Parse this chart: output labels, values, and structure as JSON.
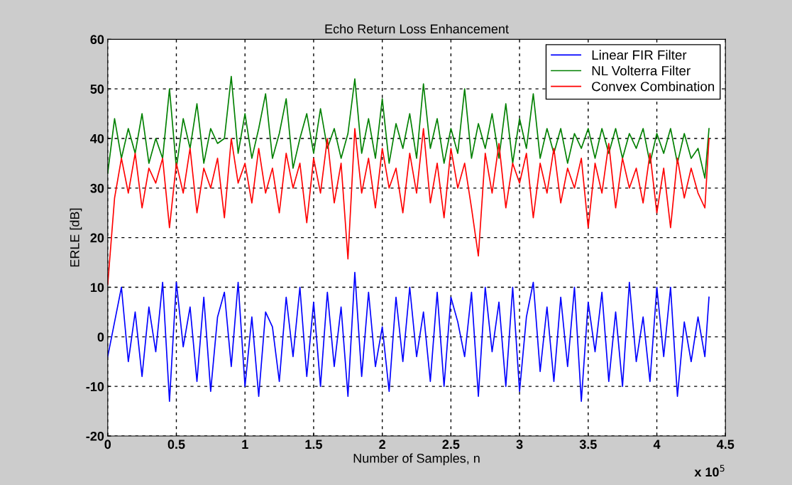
{
  "chart_data": {
    "type": "line",
    "title": "Echo Return Loss Enhancement",
    "xlabel": "Number of Samples, n",
    "ylabel": "ERLE [dB]",
    "annotations": [
      "x 10$^{5}$"
    ],
    "x": [
      0,
      0.05,
      0.1,
      0.15,
      0.2,
      0.25,
      0.3,
      0.35,
      0.4,
      0.45,
      0.5,
      0.55,
      0.6,
      0.65,
      0.7,
      0.75,
      0.8,
      0.85,
      0.9,
      0.95,
      1,
      1.05,
      1.1,
      1.15,
      1.2,
      1.25,
      1.3,
      1.35,
      1.4,
      1.45,
      1.5,
      1.55,
      1.6,
      1.65,
      1.7,
      1.75,
      1.8,
      1.85,
      1.9,
      1.95,
      2,
      2.05,
      2.1,
      2.15,
      2.2,
      2.25,
      2.3,
      2.35,
      2.4,
      2.45,
      2.5,
      2.55,
      2.6,
      2.65,
      2.7,
      2.75,
      2.8,
      2.85,
      2.9,
      2.95,
      3,
      3.05,
      3.1,
      3.15,
      3.2,
      3.25,
      3.3,
      3.35,
      3.4,
      3.45,
      3.5,
      3.55,
      3.6,
      3.65,
      3.7,
      3.75,
      3.8,
      3.85,
      3.9,
      3.95,
      4,
      4.05,
      4.1,
      4.15,
      4.2,
      4.25,
      4.3,
      4.35,
      4.38
    ],
    "series": [
      {
        "name": "Linear FIR Filter",
        "color": "#0000ff",
        "values": [
          -4,
          3,
          10,
          -5,
          5,
          -8,
          6,
          -3,
          11,
          -13,
          11,
          -2,
          6,
          -9,
          8,
          -11,
          4,
          9,
          -6,
          11,
          -10,
          4,
          -12,
          5,
          2,
          -9,
          8,
          -4,
          10,
          -8,
          7,
          -10,
          9,
          -6,
          6,
          -12,
          13,
          -8,
          9,
          -6,
          2,
          -11,
          8,
          -5,
          10,
          -4,
          5,
          -9,
          9,
          -10,
          8,
          3,
          -4,
          9,
          -12,
          10,
          -3,
          7,
          -10,
          10,
          -11,
          4,
          11,
          -7,
          6,
          -9,
          8,
          -6,
          10,
          -13,
          7,
          -3,
          9,
          -9,
          5,
          -10,
          11,
          -5,
          4,
          -9,
          10,
          -4,
          10,
          -12,
          3,
          -5,
          4,
          -4,
          8
        ]
      },
      {
        "name": "NL Volterra Filter",
        "color": "#008000",
        "values": [
          33,
          44,
          36,
          42,
          37,
          45,
          35,
          40,
          36,
          50,
          34,
          44,
          38,
          47,
          35,
          42,
          39,
          40,
          52.5,
          37,
          45,
          36,
          42,
          49,
          36,
          41,
          48,
          34,
          40,
          45,
          37,
          46,
          38,
          42,
          36,
          41,
          52,
          37,
          44,
          36,
          48,
          35,
          43,
          38,
          45,
          36,
          51,
          38,
          44,
          35,
          42,
          37,
          50,
          36,
          43,
          38,
          45,
          36,
          47,
          35,
          44,
          38,
          49,
          36,
          42,
          37,
          42,
          35,
          41,
          38,
          42,
          36,
          42,
          37,
          42,
          36,
          41,
          38,
          42,
          35,
          41,
          37,
          42,
          35,
          41,
          36,
          38,
          32,
          42
        ]
      },
      {
        "name": "Convex Combination",
        "color": "#ff0000",
        "values": [
          10.5,
          28,
          36,
          29,
          37,
          26,
          34,
          31,
          36,
          22,
          35,
          29,
          38,
          25,
          34,
          30,
          36,
          24,
          40,
          31,
          35,
          27,
          38,
          29,
          34,
          25,
          37,
          30,
          35,
          23,
          36,
          29,
          40,
          27,
          35,
          15.7,
          42,
          29,
          36,
          26,
          38,
          30,
          34,
          25,
          37,
          29,
          42,
          27,
          35,
          24,
          38,
          30,
          35,
          26,
          16.3,
          37,
          29,
          39,
          26,
          35,
          31,
          37,
          24,
          35,
          29,
          38,
          27,
          34,
          30,
          36,
          22,
          35,
          29,
          39,
          26,
          36,
          30,
          34,
          27,
          37,
          25,
          34,
          22,
          36,
          28,
          34,
          29,
          26,
          40
        ]
      }
    ],
    "xlim": [
      0,
      4.5
    ],
    "xticks": [
      0,
      0.5,
      1,
      1.5,
      2,
      2.5,
      3,
      3.5,
      4,
      4.5
    ],
    "ylim": [
      -20,
      60
    ],
    "yticks": [
      -20,
      -10,
      0,
      10,
      20,
      30,
      40,
      50,
      60
    ],
    "grid": true,
    "legend": "top right",
    "marker": "none",
    "line_style": "solid"
  }
}
